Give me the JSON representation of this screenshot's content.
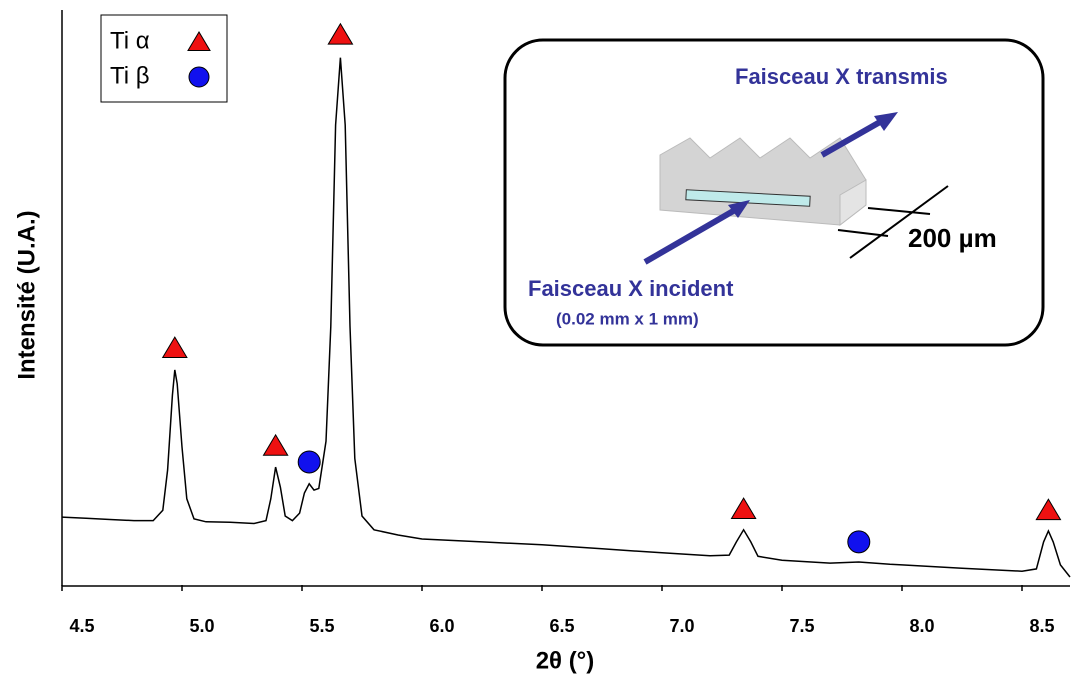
{
  "chart_data": {
    "type": "line",
    "x_label": "2θ (°)",
    "y_label": "Intensité (U.A.)",
    "color": "#000000",
    "x": [
      4.5,
      4.6,
      4.7,
      4.8,
      4.88,
      4.92,
      4.94,
      4.96,
      4.97,
      4.98,
      5.0,
      5.02,
      5.05,
      5.1,
      5.2,
      5.3,
      5.35,
      5.37,
      5.39,
      5.41,
      5.43,
      5.46,
      5.49,
      5.51,
      5.53,
      5.55,
      5.57,
      5.6,
      5.62,
      5.64,
      5.66,
      5.68,
      5.7,
      5.72,
      5.75,
      5.8,
      5.9,
      6.0,
      6.25,
      6.5,
      6.75,
      7.0,
      7.2,
      7.28,
      7.31,
      7.34,
      7.37,
      7.4,
      7.5,
      7.7,
      7.82,
      7.95,
      8.0,
      8.25,
      8.5,
      8.56,
      8.59,
      8.61,
      8.63,
      8.66,
      8.7
    ],
    "values": [
      11.8,
      11.6,
      11.4,
      11.2,
      11.2,
      13,
      20,
      33,
      37.4,
      35,
      24,
      15,
      11.5,
      11.0,
      10.9,
      10.7,
      11.2,
      15,
      20.5,
      17,
      12,
      11.2,
      12.5,
      16,
      17.6,
      16.5,
      16.8,
      25,
      45,
      80,
      91.7,
      80,
      45,
      22,
      12,
      9.6,
      8.7,
      8.0,
      7.5,
      7.0,
      6.3,
      5.6,
      5.1,
      5.2,
      7.5,
      9.6,
      7.5,
      5.0,
      4.3,
      3.8,
      4.0,
      3.6,
      3.5,
      2.9,
      2.4,
      2.8,
      7.5,
      9.4,
      7.5,
      3.5,
      1.4
    ],
    "xlim": [
      4.5,
      8.7
    ],
    "xticks": [
      4.5,
      {
        "value": 5,
        "label": "5.0"
      },
      5.5,
      {
        "value": 6,
        "label": "6.0"
      },
      6.5,
      {
        "value": 7,
        "label": "7.0"
      },
      7.5,
      {
        "value": 8,
        "label": "8.0"
      },
      8.5
    ],
    "ylim": [
      0,
      100
    ],
    "markers": [
      {
        "name": "Ti α",
        "shape": "triangle",
        "color": "#ee1111",
        "x": [
          4.97,
          5.39,
          5.66,
          7.34,
          8.61
        ],
        "values": [
          41.2,
          24.2,
          95.7,
          13.2,
          13.0
        ]
      },
      {
        "name": "Ti β",
        "shape": "circle",
        "color": "#1111ee",
        "x": [
          5.53,
          7.82
        ],
        "values": [
          21.4,
          7.5
        ]
      }
    ],
    "annotations": [
      "Faisceau X transmis",
      "Faisceau X incident",
      "(0.02 mm x 1 mm)",
      "200 µm"
    ]
  }
}
